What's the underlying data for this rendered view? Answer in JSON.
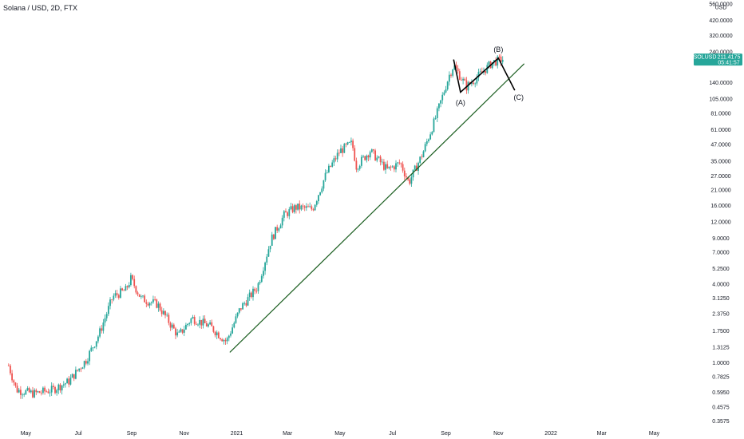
{
  "header": {
    "symbol_title": "Solana / USD, 2D, FTX"
  },
  "price_axis": {
    "currency": "USD",
    "ticks": [
      "560.0000",
      "420.0000",
      "320.0000",
      "240.0000",
      "140.0000",
      "105.0000",
      "81.0000",
      "61.0000",
      "47.0000",
      "35.0000",
      "27.0000",
      "21.0000",
      "16.0000",
      "12.0000",
      "9.0000",
      "7.0000",
      "5.2500",
      "4.0000",
      "3.1250",
      "2.3750",
      "1.7500",
      "1.3125",
      "1.0000",
      "0.7825",
      "0.5950",
      "0.4575",
      "0.3575"
    ]
  },
  "time_axis": {
    "labels": [
      "May",
      "Jul",
      "Sep",
      "Nov",
      "2021",
      "Mar",
      "May",
      "Jul",
      "Sep",
      "Nov",
      "2022",
      "Mar",
      "May"
    ]
  },
  "last_price": {
    "symbol": "SOLUSD",
    "price": "211.4175",
    "countdown": "05:41:57",
    "color": "#26a69a"
  },
  "colors": {
    "up": "#26a69a",
    "down": "#ef5350",
    "trendline": "#1b5e20",
    "wave": "#000000"
  },
  "annotations": {
    "A": "(A)",
    "B": "(B)",
    "C": "(C)"
  },
  "chart_data": {
    "type": "candlestick",
    "title": "Solana / USD, 2D, FTX",
    "y_scale": "log",
    "ylim": [
      0.34,
      600
    ],
    "xlim": [
      "2020-04-01",
      "2022-06-15"
    ],
    "grid": false,
    "price_path": [
      [
        "2020-04-11",
        0.95
      ],
      [
        "2020-04-20",
        0.62
      ],
      [
        "2020-05-10",
        0.58
      ],
      [
        "2020-06-01",
        0.62
      ],
      [
        "2020-06-20",
        0.72
      ],
      [
        "2020-07-10",
        1.05
      ],
      [
        "2020-07-25",
        1.65
      ],
      [
        "2020-08-10",
        3.2
      ],
      [
        "2020-08-25",
        3.6
      ],
      [
        "2020-08-31",
        4.4
      ],
      [
        "2020-09-12",
        3.1
      ],
      [
        "2020-10-01",
        2.8
      ],
      [
        "2020-10-25",
        1.6
      ],
      [
        "2020-11-10",
        2.2
      ],
      [
        "2020-12-01",
        1.9
      ],
      [
        "2020-12-20",
        1.45
      ],
      [
        "2021-01-05",
        2.6
      ],
      [
        "2021-01-25",
        3.8
      ],
      [
        "2021-02-10",
        8.8
      ],
      [
        "2021-02-25",
        13.5
      ],
      [
        "2021-03-10",
        15.5
      ],
      [
        "2021-03-30",
        15.0
      ],
      [
        "2021-04-15",
        28.0
      ],
      [
        "2021-05-01",
        42.0
      ],
      [
        "2021-05-15",
        48.0
      ],
      [
        "2021-05-20",
        32.0
      ],
      [
        "2021-06-05",
        42.0
      ],
      [
        "2021-06-25",
        30.0
      ],
      [
        "2021-07-10",
        34.0
      ],
      [
        "2021-07-20",
        24.0
      ],
      [
        "2021-08-05",
        40.0
      ],
      [
        "2021-08-20",
        75.0
      ],
      [
        "2021-09-05",
        160.0
      ],
      [
        "2021-09-10",
        190.0
      ],
      [
        "2021-09-25",
        130.0
      ],
      [
        "2021-10-10",
        160.0
      ],
      [
        "2021-10-25",
        200.0
      ],
      [
        "2021-11-06",
        211.4
      ]
    ],
    "last_close": 211.4175,
    "trendline": {
      "from": [
        "2020-12-24",
        1.2
      ],
      "to": [
        "2021-12-01",
        195.0
      ]
    },
    "elliott_wave": {
      "points": [
        {
          "date": "2021-09-10",
          "price": 210.0,
          "label": ""
        },
        {
          "date": "2021-09-18",
          "price": 118.0,
          "label": "(A)"
        },
        {
          "date": "2021-11-01",
          "price": 215.0,
          "label": "(B)"
        },
        {
          "date": "2021-11-20",
          "price": 122.0,
          "label": "(C)"
        }
      ]
    }
  }
}
